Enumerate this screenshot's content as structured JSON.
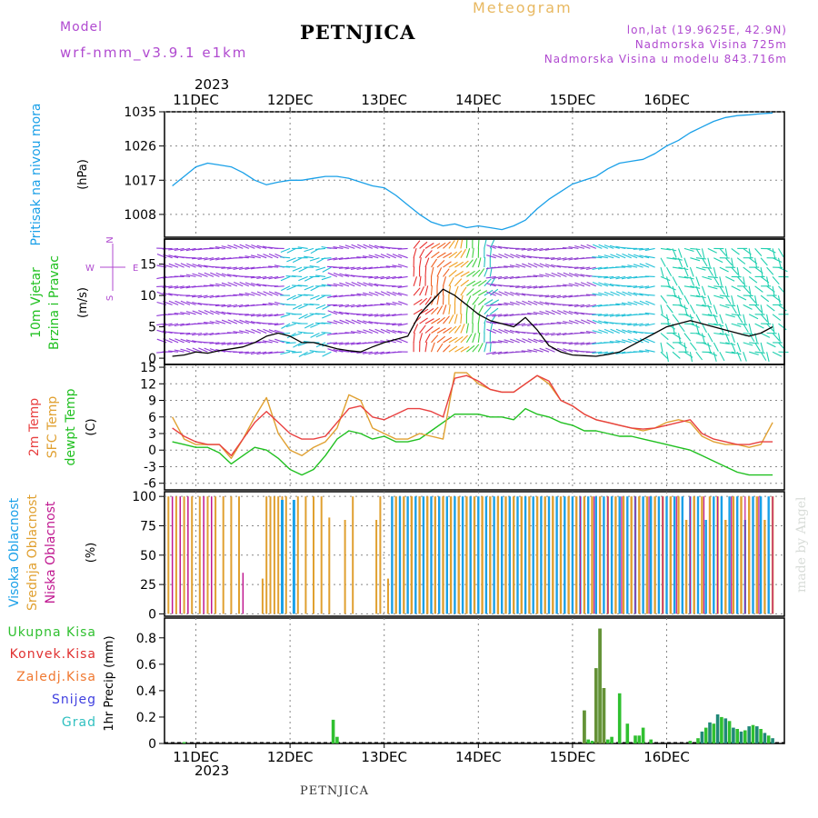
{
  "header": {
    "model_label": "Model",
    "model_name": "wrf-nmm_v3.9.1  e1km",
    "station": "PETNJICA",
    "product": "Meteogram",
    "coords": "lon,lat (19.9625E, 42.9N)",
    "elevation": "Nadmorska Visina 725m",
    "model_elevation": "Nadmorska Visina u modelu 843.716m",
    "footer_station": "PETNJICA",
    "watermark": "made by Angel",
    "year_top": "2023",
    "year_bottom": "2023"
  },
  "colors": {
    "magenta": "#b04ad0",
    "gold": "#e8b860",
    "pressure": "#1aa0e8",
    "temp2m": "#e84040",
    "sfc": "#e0a030",
    "dewpt": "#20c020",
    "high_cloud": "#1aa0e8",
    "mid_cloud": "#e0a030",
    "low_cloud": "#c01890",
    "total_precip": "#30c030",
    "conv_precip": "#e03030",
    "frz_precip": "#f07830",
    "snow": "#4040e0",
    "grad": "#30c0c0",
    "watermark": "#d8dcd8"
  },
  "days": [
    "11DEC",
    "12DEC",
    "13DEC",
    "14DEC",
    "15DEC",
    "16DEC"
  ],
  "panels": {
    "pressure": {
      "ylabel": "Pritisak na nivou mora",
      "unit": "(hPa)",
      "ticks": [
        1008,
        1017,
        1026,
        1035
      ],
      "ylim": [
        1002,
        1035
      ]
    },
    "wind": {
      "ylabel_line1": "10m Vjetar",
      "ylabel_line2": "Brzina i Pravac",
      "unit": "(m/s)",
      "ticks": [
        0,
        5,
        10,
        15
      ],
      "ylim": [
        -1,
        19
      ],
      "compass_n": "N",
      "compass_s": "S",
      "compass_w": "W",
      "compass_e": "E"
    },
    "temp": {
      "ylabel_2m": "2m Temp",
      "ylabel_sfc": "SFC Temp",
      "ylabel_dew": "dewpt Temp",
      "unit": "(C)",
      "ticks": [
        -6,
        -3,
        0,
        3,
        6,
        9,
        12,
        15
      ],
      "ylim": [
        -7.2,
        15.5
      ]
    },
    "cloud": {
      "ylabel_high": "Visoka Oblacnost",
      "ylabel_mid": "Srednja Oblacnost",
      "ylabel_low": "Niska Oblacnost",
      "unit": "(%)",
      "ticks": [
        0,
        25,
        50,
        75,
        100
      ],
      "ylim": [
        -2,
        104
      ]
    },
    "precip": {
      "legend_total": "Ukupna Kisa",
      "legend_conv": "Konvek.Kisa",
      "legend_frz": "Zaledj.Kisa",
      "legend_snow": "Snijeg",
      "legend_grad": "Grad",
      "ylabel": "1hr Precip (mm)",
      "ticks": [
        0,
        0.2,
        0.4,
        0.6,
        0.8
      ],
      "ylim": [
        0,
        0.95
      ]
    }
  },
  "chart_data": [
    {
      "type": "line",
      "title": "Pritisak na nivou mora",
      "ylabel": "(hPa)",
      "x_unit": "hours since 11DEC 00Z",
      "ylim": [
        1002,
        1035
      ],
      "series": [
        {
          "name": "Pritisak na nivou mora",
          "x": [
            -6,
            -3,
            0,
            3,
            6,
            9,
            12,
            15,
            18,
            21,
            24,
            27,
            30,
            33,
            36,
            39,
            42,
            45,
            48,
            51,
            54,
            57,
            60,
            63,
            66,
            69,
            72,
            75,
            78,
            81,
            84,
            87,
            90,
            93,
            96,
            99,
            102,
            105,
            108,
            111,
            114,
            117,
            120,
            123,
            126,
            129,
            132,
            135,
            138,
            141,
            144,
            147
          ],
          "values": [
            1015.5,
            1018,
            1020.5,
            1021.5,
            1021,
            1020.5,
            1019,
            1017,
            1015.8,
            1016.5,
            1017,
            1017,
            1017.5,
            1018,
            1018,
            1017.5,
            1016.5,
            1015.5,
            1015,
            1013,
            1010.5,
            1008,
            1006,
            1005,
            1005.5,
            1004.5,
            1005,
            1004.5,
            1004,
            1005,
            1006.5,
            1009.5,
            1012,
            1014,
            1016,
            1017,
            1018,
            1020,
            1021.5,
            1022,
            1022.5,
            1024,
            1026,
            1027.5,
            1029.5,
            1031,
            1032.5,
            1033.5,
            1034,
            1034.2,
            1034.5,
            1034.7
          ]
        }
      ]
    },
    {
      "type": "line",
      "title": "10m Vjetar Brzina i Pravac",
      "ylabel": "(m/s)",
      "x_unit": "hours since 11DEC 00Z",
      "ylim": [
        -1,
        19
      ],
      "series": [
        {
          "name": "10m Vjetar",
          "x": [
            -6,
            -3,
            0,
            3,
            6,
            9,
            12,
            15,
            18,
            21,
            24,
            27,
            30,
            33,
            36,
            39,
            42,
            45,
            48,
            51,
            54,
            57,
            60,
            63,
            66,
            69,
            72,
            75,
            78,
            81,
            84,
            87,
            90,
            93,
            96,
            99,
            102,
            105,
            108,
            111,
            114,
            117,
            120,
            123,
            126,
            129,
            132,
            135,
            138,
            141,
            144,
            147
          ],
          "values": [
            0.3,
            0.5,
            1,
            0.8,
            1.2,
            1.5,
            1.8,
            2.5,
            3.5,
            4,
            3.5,
            2.5,
            2.5,
            2,
            1.5,
            1.2,
            1,
            1.8,
            2.5,
            3,
            3.5,
            7,
            9,
            11,
            10,
            8.5,
            7,
            6,
            5.5,
            5,
            6.5,
            4.5,
            2,
            1,
            0.5,
            0.4,
            0.3,
            0.6,
            1,
            2,
            3,
            4,
            5,
            5.5,
            6,
            5.5,
            5,
            4.5,
            4,
            3.5,
            4,
            5
          ]
        }
      ]
    },
    {
      "type": "line",
      "title": "Temp",
      "ylabel": "(C)",
      "x_unit": "hours since 11DEC 00Z",
      "ylim": [
        -7.2,
        15.5
      ],
      "series": [
        {
          "name": "2m Temp",
          "x": [
            -6,
            -3,
            0,
            3,
            6,
            9,
            12,
            15,
            18,
            21,
            24,
            27,
            30,
            33,
            36,
            39,
            42,
            45,
            48,
            51,
            54,
            57,
            60,
            63,
            66,
            69,
            72,
            75,
            78,
            81,
            84,
            87,
            90,
            93,
            96,
            99,
            102,
            105,
            108,
            111,
            114,
            117,
            120,
            123,
            126,
            129,
            132,
            135,
            138,
            141,
            144,
            147
          ],
          "values": [
            4,
            2.5,
            1.5,
            1,
            1,
            -1,
            2,
            5,
            7,
            5,
            3,
            2,
            2,
            2.5,
            5,
            7.5,
            8,
            6,
            5.5,
            6.5,
            7.5,
            7.5,
            7,
            6,
            13,
            13.5,
            12.5,
            11,
            10.5,
            10.5,
            12,
            13.5,
            12.5,
            9,
            8,
            6.5,
            5.5,
            5,
            4.5,
            4,
            3.8,
            4,
            4.5,
            5,
            5.5,
            3,
            2,
            1.5,
            1,
            1,
            1.5,
            1.5
          ]
        },
        {
          "name": "SFC Temp",
          "x": [
            -6,
            -3,
            0,
            3,
            6,
            9,
            12,
            15,
            18,
            21,
            24,
            27,
            30,
            33,
            36,
            39,
            42,
            45,
            48,
            51,
            54,
            57,
            60,
            63,
            66,
            69,
            72,
            75,
            78,
            81,
            84,
            87,
            90,
            93,
            96,
            99,
            102,
            105,
            108,
            111,
            114,
            117,
            120,
            123,
            126,
            129,
            132,
            135,
            138,
            141,
            144,
            147
          ],
          "values": [
            6,
            2,
            1,
            1,
            1,
            -1.5,
            2,
            6,
            9.5,
            3,
            0,
            -1,
            0.5,
            1.5,
            4,
            10,
            9,
            4,
            3,
            2,
            2,
            3,
            2.5,
            2,
            14,
            14,
            12,
            11,
            10.5,
            10.5,
            12,
            13.5,
            12,
            9,
            8,
            6.5,
            5.5,
            5,
            4.5,
            4,
            3.5,
            4,
            5,
            5.5,
            5,
            2.5,
            1.5,
            1,
            1,
            0.5,
            1,
            5
          ]
        },
        {
          "name": "dewpt Temp",
          "x": [
            -6,
            -3,
            0,
            3,
            6,
            9,
            12,
            15,
            18,
            21,
            24,
            27,
            30,
            33,
            36,
            39,
            42,
            45,
            48,
            51,
            54,
            57,
            60,
            63,
            66,
            69,
            72,
            75,
            78,
            81,
            84,
            87,
            90,
            93,
            96,
            99,
            102,
            105,
            108,
            111,
            114,
            117,
            120,
            123,
            126,
            129,
            132,
            135,
            138,
            141,
            144,
            147
          ],
          "values": [
            1.5,
            1,
            0.5,
            0.5,
            -0.5,
            -2.5,
            -1,
            0.5,
            0,
            -1.5,
            -3.5,
            -4.5,
            -3.5,
            -1,
            2,
            3.5,
            3,
            2,
            2.5,
            1.5,
            1.5,
            2,
            3.5,
            5,
            6.5,
            6.5,
            6.5,
            6,
            6,
            5.5,
            7.5,
            6.5,
            6,
            5,
            4.5,
            3.5,
            3.5,
            3,
            2.5,
            2.5,
            2,
            1.5,
            1,
            0.5,
            0,
            -1,
            -2,
            -3,
            -4,
            -4.5,
            -4.5,
            -4.5
          ]
        }
      ]
    },
    {
      "type": "bar",
      "title": "Oblacnost",
      "ylabel": "(%)",
      "ylim": [
        0,
        100
      ],
      "series": [
        {
          "name": "Visoka Oblacnost",
          "note": "hourly columns; ~100% from 13DEC to 16DEC"
        },
        {
          "name": "Srednja Oblacnost",
          "note": "scattered 100% columns on 11DEC-12DEC"
        },
        {
          "name": "Niska Oblacnost",
          "note": "scattered columns on 11DEC"
        }
      ]
    },
    {
      "type": "bar",
      "title": "1hr Precip",
      "ylabel": "(mm)",
      "ylim": [
        0,
        0.95
      ],
      "series": [
        {
          "name": "Ukupna Kisa",
          "x": [
            -3,
            35,
            36,
            99,
            100,
            101,
            102,
            103,
            104,
            105,
            106,
            108,
            110,
            112,
            113,
            114,
            116,
            126,
            128,
            129,
            130,
            131,
            132,
            133,
            134,
            135,
            136,
            137,
            138,
            139,
            140,
            141,
            142,
            143,
            144,
            145,
            146,
            147
          ],
          "values": [
            0.01,
            0.18,
            0.05,
            0.25,
            0.03,
            0.02,
            0.57,
            0.87,
            0.42,
            0.03,
            0.05,
            0.38,
            0.15,
            0.06,
            0.06,
            0.12,
            0.03,
            0.02,
            0.04,
            0.09,
            0.12,
            0.16,
            0.15,
            0.22,
            0.2,
            0.19,
            0.17,
            0.12,
            0.11,
            0.09,
            0.1,
            0.13,
            0.14,
            0.13,
            0.11,
            0.08,
            0.06,
            0.04
          ]
        },
        {
          "name": "Konvek.Kisa",
          "x": [
            99,
            102,
            103,
            104
          ],
          "values": [
            0.25,
            0.57,
            0.87,
            0.42
          ]
        }
      ]
    }
  ]
}
